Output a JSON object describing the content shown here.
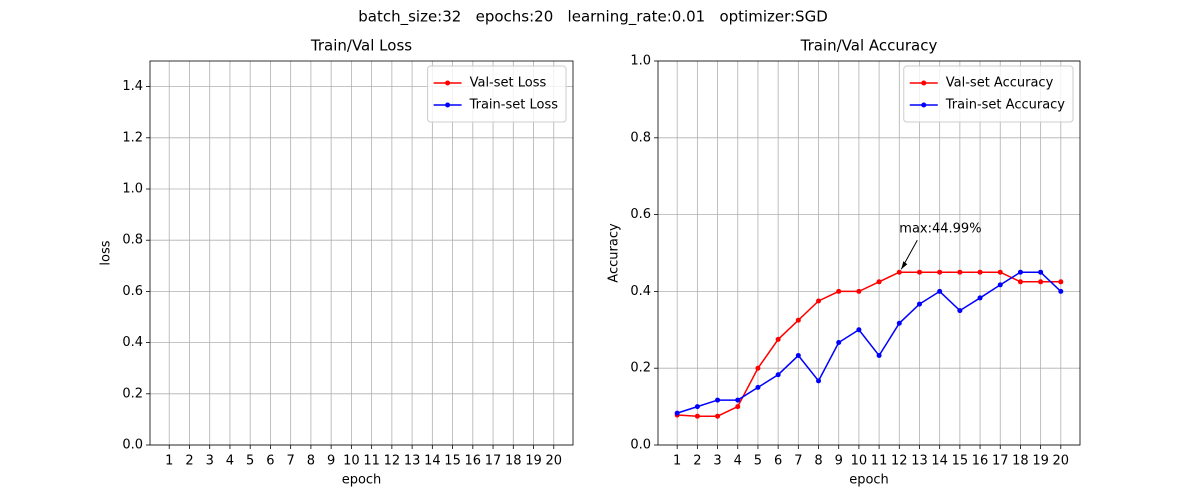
{
  "suptitle": "batch_size:32   epochs:20   learning_rate:0.01   optimizer:SGD",
  "chart_data": [
    {
      "type": "line",
      "title": "Train/Val Loss",
      "xlabel": "epoch",
      "ylabel": "loss",
      "x": [
        1,
        2,
        3,
        4,
        5,
        6,
        7,
        8,
        9,
        10,
        11,
        12,
        13,
        14,
        15,
        16,
        17,
        18,
        19,
        20
      ],
      "series": [
        {
          "name": "Val-set Loss",
          "color": "#ff0000",
          "values": [
            null,
            null,
            null,
            null,
            null,
            null,
            null,
            null,
            null,
            null,
            null,
            null,
            null,
            null,
            null,
            null,
            null,
            null,
            null,
            null
          ]
        },
        {
          "name": "Train-set Loss",
          "color": "#0000ff",
          "values": [
            null,
            null,
            null,
            null,
            null,
            null,
            null,
            null,
            null,
            null,
            null,
            null,
            null,
            null,
            null,
            null,
            null,
            null,
            null,
            null
          ]
        }
      ],
      "xlim": [
        0.05,
        20.95
      ],
      "xticks": [
        1,
        2,
        3,
        4,
        5,
        6,
        7,
        8,
        9,
        10,
        11,
        12,
        13,
        14,
        15,
        16,
        17,
        18,
        19,
        20
      ],
      "ylim": [
        0,
        1.5
      ],
      "yticks": [
        {
          "value": 0,
          "label": "0.0"
        },
        0.2,
        0.4,
        0.6,
        0.8,
        {
          "value": 1,
          "label": "1.0"
        },
        1.2,
        1.4
      ],
      "grid": true,
      "legend": "upper right"
    },
    {
      "type": "line",
      "title": "Train/Val Accuracy",
      "xlabel": "epoch",
      "ylabel": "Accuracy",
      "x": [
        1,
        2,
        3,
        4,
        5,
        6,
        7,
        8,
        9,
        10,
        11,
        12,
        13,
        14,
        15,
        16,
        17,
        18,
        19,
        20
      ],
      "series": [
        {
          "name": "Val-set Accuracy",
          "color": "#ff0000",
          "values": [
            0.078,
            0.075,
            0.075,
            0.1,
            0.2,
            0.275,
            0.325,
            0.375,
            0.4,
            0.4,
            0.425,
            0.4499,
            0.45,
            0.45,
            0.45,
            0.45,
            0.45,
            0.425,
            0.425,
            0.425
          ]
        },
        {
          "name": "Train-set Accuracy",
          "color": "#0000ff",
          "values": [
            0.083,
            0.1,
            0.117,
            0.117,
            0.15,
            0.183,
            0.233,
            0.167,
            0.267,
            0.3,
            0.233,
            0.317,
            0.367,
            0.4,
            0.35,
            0.383,
            0.417,
            0.45,
            0.45,
            0.4
          ]
        }
      ],
      "xlim": [
        0.05,
        20.95
      ],
      "xticks": [
        1,
        2,
        3,
        4,
        5,
        6,
        7,
        8,
        9,
        10,
        11,
        12,
        13,
        14,
        15,
        16,
        17,
        18,
        19,
        20
      ],
      "ylim": [
        0,
        1
      ],
      "yticks": [
        {
          "value": 0,
          "label": "0.0"
        },
        0.2,
        0.4,
        0.6,
        0.8,
        {
          "value": 1,
          "label": "1.0"
        }
      ],
      "grid": true,
      "legend": "upper right",
      "annotations": [
        {
          "text": "max:44.99%",
          "x": 12,
          "y": 0.4499
        }
      ]
    }
  ]
}
